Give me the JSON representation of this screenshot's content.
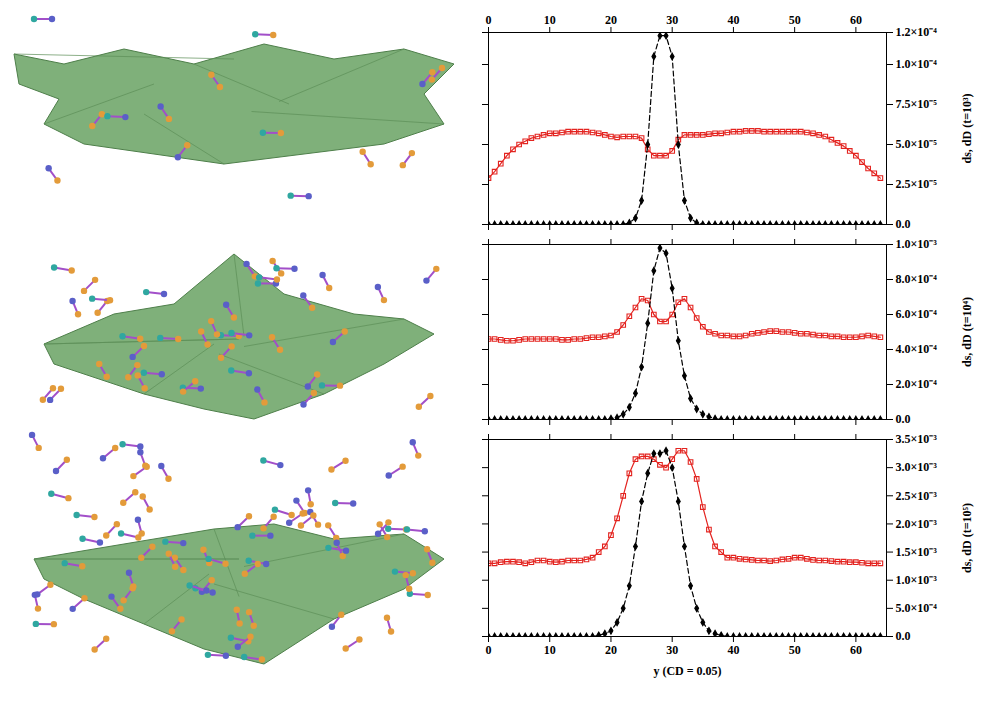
{
  "chart_data": [
    {
      "type": "line",
      "ylabel": "ds, dD (t=10³)",
      "xlim": [
        0,
        65
      ],
      "xticks": [
        0,
        10,
        20,
        30,
        40,
        50,
        60
      ],
      "ylim": [
        0,
        0.00012
      ],
      "yticks": [
        {
          "value": 0,
          "label": "0.0"
        },
        {
          "value": 2.5e-05,
          "label": "2.5×10⁻⁵"
        },
        {
          "value": 5e-05,
          "label": "5.0×10⁻⁵"
        },
        {
          "value": 7.5e-05,
          "label": "7.5×10⁻⁵"
        },
        {
          "value": 0.0001,
          "label": "1.0×10⁻⁴"
        },
        {
          "value": 0.00012,
          "label": "1.2×10⁻⁴"
        }
      ],
      "x": [
        0,
        1,
        2,
        3,
        4,
        5,
        6,
        7,
        8,
        9,
        10,
        11,
        12,
        13,
        14,
        15,
        16,
        17,
        18,
        19,
        20,
        21,
        22,
        23,
        24,
        25,
        26,
        27,
        28,
        29,
        30,
        31,
        32,
        33,
        34,
        35,
        36,
        37,
        38,
        39,
        40,
        41,
        42,
        43,
        44,
        45,
        46,
        47,
        48,
        49,
        50,
        51,
        52,
        53,
        54,
        55,
        56,
        57,
        58,
        59,
        60,
        61,
        62,
        63,
        64
      ],
      "series": [
        {
          "name": "ds",
          "color": "#e3231f",
          "marker": "square",
          "line_style": "solid",
          "values": [
            2.9e-05,
            3.3e-05,
            3.8e-05,
            4.3e-05,
            4.7e-05,
            5e-05,
            5.2e-05,
            5.4e-05,
            5.5e-05,
            5.6e-05,
            5.7e-05,
            5.7e-05,
            5.75e-05,
            5.8e-05,
            5.8e-05,
            5.8e-05,
            5.8e-05,
            5.75e-05,
            5.7e-05,
            5.6e-05,
            5.5e-05,
            5.45e-05,
            5.5e-05,
            5.5e-05,
            5.5e-05,
            5.4e-05,
            4.7e-05,
            4.3e-05,
            4.3e-05,
            4.3e-05,
            4.6e-05,
            5.3e-05,
            5.6e-05,
            5.6e-05,
            5.6e-05,
            5.6e-05,
            5.65e-05,
            5.7e-05,
            5.7e-05,
            5.75e-05,
            5.8e-05,
            5.8e-05,
            5.85e-05,
            5.85e-05,
            5.85e-05,
            5.8e-05,
            5.8e-05,
            5.8e-05,
            5.8e-05,
            5.8e-05,
            5.8e-05,
            5.8e-05,
            5.75e-05,
            5.7e-05,
            5.6e-05,
            5.5e-05,
            5.3e-05,
            5.1e-05,
            4.9e-05,
            4.6e-05,
            4.3e-05,
            3.9e-05,
            3.5e-05,
            3.2e-05,
            2.9e-05
          ]
        },
        {
          "name": "dD",
          "color": "#000000",
          "marker": "diamond",
          "line_style": "dashed",
          "values": [
            0,
            0,
            0,
            0,
            0,
            0,
            0,
            0,
            0,
            0,
            0,
            0,
            0,
            0,
            0,
            0,
            0,
            0,
            0,
            0,
            0,
            0,
            0,
            1e-06,
            4e-06,
            1.5e-05,
            5e-05,
            0.000105,
            0.000118,
            0.000118,
            0.000105,
            5e-05,
            1.5e-05,
            4e-06,
            1e-06,
            0,
            0,
            0,
            0,
            0,
            0,
            0,
            0,
            0,
            0,
            0,
            0,
            0,
            0,
            0,
            0,
            0,
            0,
            0,
            0,
            0,
            0,
            0,
            0,
            0,
            0,
            0,
            0,
            0,
            0
          ]
        }
      ]
    },
    {
      "type": "line",
      "ylabel": "ds, dD (t=10⁴)",
      "tick_labels": "y",
      "xlim": [
        0,
        65
      ],
      "xticks": [
        0,
        10,
        20,
        30,
        40,
        50,
        60
      ],
      "ylim": [
        0,
        0.001
      ],
      "yticks": [
        {
          "value": 0,
          "label": "0.0"
        },
        {
          "value": 0.0002,
          "label": "2.0×10⁻⁴"
        },
        {
          "value": 0.0004,
          "label": "4.0×10⁻⁴"
        },
        {
          "value": 0.0006,
          "label": "6.0×10⁻⁴"
        },
        {
          "value": 0.0008,
          "label": "8.0×10⁻⁴"
        },
        {
          "value": 0.001,
          "label": "1.0×10⁻³"
        }
      ],
      "x": [
        0,
        1,
        2,
        3,
        4,
        5,
        6,
        7,
        8,
        9,
        10,
        11,
        12,
        13,
        14,
        15,
        16,
        17,
        18,
        19,
        20,
        21,
        22,
        23,
        24,
        25,
        26,
        27,
        28,
        29,
        30,
        31,
        32,
        33,
        34,
        35,
        36,
        37,
        38,
        39,
        40,
        41,
        42,
        43,
        44,
        45,
        46,
        47,
        48,
        49,
        50,
        51,
        52,
        53,
        54,
        55,
        56,
        57,
        58,
        59,
        60,
        61,
        62,
        63,
        64
      ],
      "series": [
        {
          "name": "ds",
          "color": "#e3231f",
          "marker": "square",
          "line_style": "solid",
          "values": [
            0.00046,
            0.00046,
            0.000455,
            0.00045,
            0.00045,
            0.000455,
            0.00046,
            0.00046,
            0.00046,
            0.00046,
            0.00046,
            0.00046,
            0.000455,
            0.000455,
            0.00046,
            0.00046,
            0.000465,
            0.00047,
            0.00047,
            0.000475,
            0.00048,
            0.0005,
            0.00054,
            0.00059,
            0.00064,
            0.00069,
            0.00068,
            0.0006,
            0.00056,
            0.00056,
            0.0006,
            0.00067,
            0.00069,
            0.00064,
            0.00058,
            0.00053,
            0.0005,
            0.00049,
            0.00048,
            0.00048,
            0.000475,
            0.000475,
            0.00048,
            0.00049,
            0.000495,
            0.0005,
            0.000505,
            0.000505,
            0.0005,
            0.0005,
            0.000495,
            0.00049,
            0.00049,
            0.000485,
            0.00048,
            0.00048,
            0.000475,
            0.000475,
            0.00047,
            0.00047,
            0.00047,
            0.000475,
            0.00048,
            0.000475,
            0.00047
          ]
        },
        {
          "name": "dD",
          "color": "#000000",
          "marker": "diamond",
          "line_style": "dashed",
          "values": [
            0,
            0,
            0,
            0,
            0,
            0,
            0,
            0,
            0,
            0,
            0,
            0,
            0,
            0,
            0,
            0,
            0,
            0,
            0,
            0,
            5e-06,
            1e-05,
            3e-05,
            7e-05,
            0.00015,
            0.0003,
            0.00055,
            0.00085,
            0.00098,
            0.00095,
            0.00075,
            0.00045,
            0.00025,
            0.00012,
            6e-05,
            3e-05,
            1.5e-05,
            5e-06,
            0,
            0,
            0,
            0,
            0,
            0,
            0,
            0,
            0,
            0,
            0,
            0,
            0,
            0,
            0,
            0,
            0,
            0,
            0,
            0,
            0,
            0,
            0,
            0,
            0,
            0,
            0
          ]
        }
      ]
    },
    {
      "type": "line",
      "ylabel": "ds, dD (t=10⁵)",
      "xlabel": "y (CD = 0.05)",
      "xlim": [
        0,
        65
      ],
      "xticks": [
        0,
        10,
        20,
        30,
        40,
        50,
        60
      ],
      "ylim": [
        0,
        0.0035
      ],
      "yticks": [
        {
          "value": 0,
          "label": "0.0"
        },
        {
          "value": 0.0005,
          "label": "5.0×10⁻⁴"
        },
        {
          "value": 0.001,
          "label": "1.0×10⁻³"
        },
        {
          "value": 0.0015,
          "label": "1.5×10⁻³"
        },
        {
          "value": 0.002,
          "label": "2.0×10⁻³"
        },
        {
          "value": 0.0025,
          "label": "2.5×10⁻³"
        },
        {
          "value": 0.003,
          "label": "3.0×10⁻³"
        },
        {
          "value": 0.0035,
          "label": "3.5×10⁻³"
        }
      ],
      "x": [
        0,
        1,
        2,
        3,
        4,
        5,
        6,
        7,
        8,
        9,
        10,
        11,
        12,
        13,
        14,
        15,
        16,
        17,
        18,
        19,
        20,
        21,
        22,
        23,
        24,
        25,
        26,
        27,
        28,
        29,
        30,
        31,
        32,
        33,
        34,
        35,
        36,
        37,
        38,
        39,
        40,
        41,
        42,
        43,
        44,
        45,
        46,
        47,
        48,
        49,
        50,
        51,
        52,
        53,
        54,
        55,
        56,
        57,
        58,
        59,
        60,
        61,
        62,
        63,
        64
      ],
      "series": [
        {
          "name": "ds",
          "color": "#e3231f",
          "marker": "square",
          "line_style": "solid",
          "values": [
            0.0013,
            0.0013,
            0.00132,
            0.00133,
            0.00133,
            0.00132,
            0.0013,
            0.00132,
            0.00135,
            0.00135,
            0.00133,
            0.00132,
            0.00133,
            0.00135,
            0.00135,
            0.00135,
            0.00137,
            0.0014,
            0.0015,
            0.0016,
            0.0018,
            0.0021,
            0.0025,
            0.0029,
            0.00315,
            0.0032,
            0.0032,
            0.00315,
            0.00305,
            0.003,
            0.00315,
            0.0033,
            0.0033,
            0.0031,
            0.0028,
            0.0023,
            0.0019,
            0.0016,
            0.0015,
            0.0014,
            0.0014,
            0.00138,
            0.00137,
            0.00136,
            0.00135,
            0.00135,
            0.00134,
            0.00135,
            0.00137,
            0.00138,
            0.0014,
            0.0014,
            0.00138,
            0.00136,
            0.00135,
            0.00135,
            0.00134,
            0.00133,
            0.00133,
            0.00132,
            0.00132,
            0.00131,
            0.0013,
            0.0013,
            0.0013
          ]
        },
        {
          "name": "dD",
          "color": "#000000",
          "marker": "diamond",
          "line_style": "dashed",
          "values": [
            0,
            0,
            0,
            0,
            0,
            0,
            0,
            0,
            0,
            0,
            0,
            0,
            0,
            0,
            0,
            0,
            0,
            0,
            2e-05,
            5e-05,
            0.0001,
            0.00025,
            0.0005,
            0.0009,
            0.0016,
            0.0024,
            0.0029,
            0.00325,
            0.00325,
            0.0033,
            0.003,
            0.0024,
            0.0016,
            0.0009,
            0.0005,
            0.00025,
            0.0001,
            5e-05,
            2e-05,
            0,
            0,
            0,
            0,
            0,
            0,
            0,
            0,
            0,
            0,
            0,
            0,
            0,
            0,
            0,
            0,
            0,
            0,
            0,
            0,
            0,
            0,
            0,
            0,
            0,
            0
          ]
        }
      ]
    }
  ]
}
